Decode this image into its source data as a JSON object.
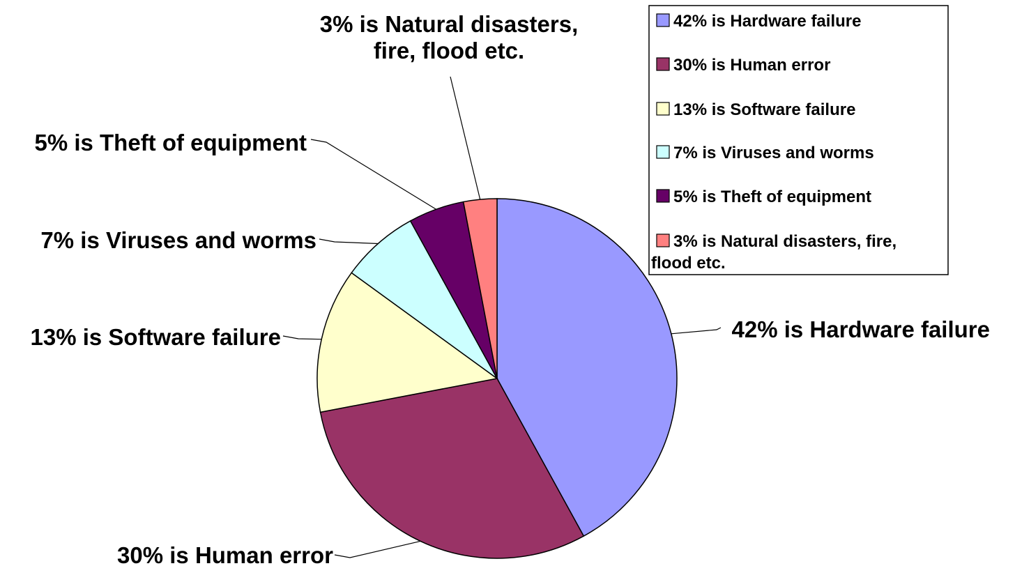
{
  "chart_data": {
    "type": "pie",
    "start_angle_deg": 0,
    "direction": "clockwise",
    "slices": [
      {
        "name": "Hardware failure",
        "value": 42,
        "color": "#9999ff",
        "label_lines": [
          "42% is Hardware failure"
        ],
        "legend_lines": [
          "42% is Hardware failure"
        ]
      },
      {
        "name": "Human error",
        "value": 30,
        "color": "#993366",
        "label_lines": [
          "30% is Human error"
        ],
        "legend_lines": [
          "30% is Human error"
        ]
      },
      {
        "name": "Software failure",
        "value": 13,
        "color": "#ffffcc",
        "label_lines": [
          "13% is Software failure"
        ],
        "legend_lines": [
          "13% is Software failure"
        ]
      },
      {
        "name": "Viruses and worms",
        "value": 7,
        "color": "#ccffff",
        "label_lines": [
          "7% is Viruses and worms"
        ],
        "legend_lines": [
          "7% is Viruses and worms"
        ]
      },
      {
        "name": "Theft of equipment",
        "value": 5,
        "color": "#660066",
        "label_lines": [
          "5% is Theft of equipment"
        ],
        "legend_lines": [
          "5% is Theft of equipment"
        ]
      },
      {
        "name": "Natural disasters, fire, flood etc.",
        "value": 3,
        "color": "#ff8080",
        "label_lines": [
          "3% is Natural disasters,",
          "fire, flood etc."
        ],
        "legend_lines": [
          "3% is Natural disasters, fire,",
          "flood etc."
        ]
      }
    ],
    "legend_position": "top-right"
  }
}
